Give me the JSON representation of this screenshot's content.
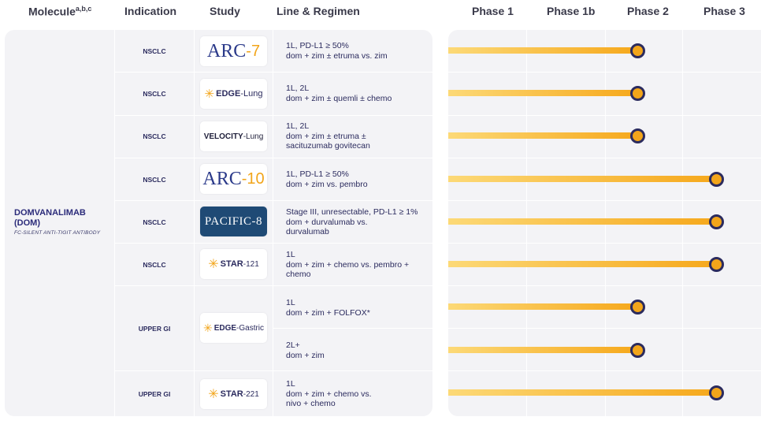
{
  "headers": {
    "molecule": "Molecule",
    "molecule_sup": "a,b,c",
    "indication": "Indication",
    "study": "Study",
    "line_regimen": "Line & Regimen",
    "phase1": "Phase 1",
    "phase1b": "Phase 1b",
    "phase2": "Phase 2",
    "phase3": "Phase 3"
  },
  "molecule": {
    "name": "DOMVANALIMAB (DOM)",
    "subtitle": "FC-SILENT ANTI-TIGIT ANTIBODY"
  },
  "colors": {
    "bar_light": "#fcd977",
    "bar_dark": "#f6a81c",
    "dot_border": "#2b2b5e"
  },
  "chart_data": {
    "type": "bar",
    "categories": [
      "Phase 1",
      "Phase 1b",
      "Phase 2",
      "Phase 3"
    ],
    "rows": [
      {
        "study": "ARC-7",
        "indication": "NSCLC",
        "regimen": "1L, PD-L1 ≥ 50%\ndom + zim ± etruma vs. zim",
        "phase": "Phase 2"
      },
      {
        "study": "EDGE-Lung",
        "indication": "NSCLC",
        "regimen": "1L, 2L\ndom + zim ± quemli ± chemo",
        "phase": "Phase 2"
      },
      {
        "study": "VELOCITY-Lung",
        "indication": "NSCLC",
        "regimen": "1L, 2L\ndom + zim ± etruma ±\nsacituzumab govitecan",
        "phase": "Phase 2"
      },
      {
        "study": "ARC-10",
        "indication": "NSCLC",
        "regimen": "1L, PD-L1 ≥ 50%\ndom + zim vs. pembro",
        "phase": "Phase 3"
      },
      {
        "study": "PACIFIC-8",
        "indication": "NSCLC",
        "regimen": "Stage III, unresectable, PD-L1 ≥ 1%\ndom + durvalumab vs.\ndurvalumab",
        "phase": "Phase 3"
      },
      {
        "study": "STAR-121",
        "indication": "NSCLC",
        "regimen": "1L\ndom + zim + chemo vs. pembro +\nchemo",
        "phase": "Phase 3"
      },
      {
        "study": "EDGE-Gastric",
        "indication": "UPPER GI",
        "regimen": "1L\ndom + zim + FOLFOX*",
        "phase": "Phase 2"
      },
      {
        "study": "EDGE-Gastric",
        "indication": "UPPER GI",
        "regimen": "2L+\ndom + zim",
        "phase": "Phase 2"
      },
      {
        "study": "STAR-221",
        "indication": "UPPER GI",
        "regimen": "1L\ndom + zim + chemo vs.\nnivo + chemo",
        "phase": "Phase 3"
      }
    ]
  },
  "logos": {
    "arc7": {
      "prefix": "ARC",
      "suffix": "-7"
    },
    "edge_lung": {
      "prefix": "EDGE",
      "suffix": "-Lung"
    },
    "velocity": {
      "prefix": "VELOCITY",
      "suffix": "-Lung"
    },
    "arc10": {
      "prefix": "ARC",
      "suffix": "-10"
    },
    "pacific": {
      "text": "PACIFIC-8"
    },
    "star121": {
      "prefix": "STAR",
      "suffix": "-121"
    },
    "edge_gastric": {
      "prefix": "EDGE",
      "suffix": "-Gastric"
    },
    "star221": {
      "prefix": "STAR",
      "suffix": "-221"
    }
  }
}
